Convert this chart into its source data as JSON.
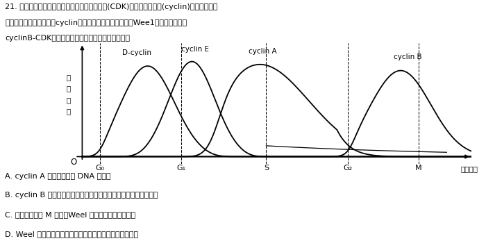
{
  "title_line1": "21. 细胞周期控制器是由细胞周期蛋白依赖激酶(CDK)和细胞周期蛋白(cyclin)两种蛋白质构",
  "title_line2": "成的复合物。下图为多种cyclin在细胞周期中的表达水平，Wee1蛋白激酶可抑制",
  "title_line3": "cyclinB-CDK复合物的活性。下列相关说法错误的是",
  "ylabel": "表\n达\n水\n平",
  "xlabel": "细胞周期",
  "phase_labels": [
    "G₀",
    "G₁",
    "S",
    "G₂",
    "M"
  ],
  "phase_x": [
    0.5,
    2.8,
    5.2,
    7.5,
    9.5
  ],
  "dashed_x": [
    0.5,
    2.8,
    5.2,
    7.5,
    9.5
  ],
  "options": [
    "A. cyclin A 蛋白可能参与 DNA 的复制",
    "B. cyclin B 可能与启动纺锤体的组装及纺锤丝与染色体的连接有关",
    "C. 细胞顺利进入 M 期时，Weel 蛋白激酶的活性会减弱",
    "D. Weel 蛋白激酶活性降低，可使细胞分裂间期的时间增加"
  ],
  "background_color": "#ffffff",
  "line_color": "#1a1a1a",
  "xmax": 11.0,
  "ymax": 1.25
}
